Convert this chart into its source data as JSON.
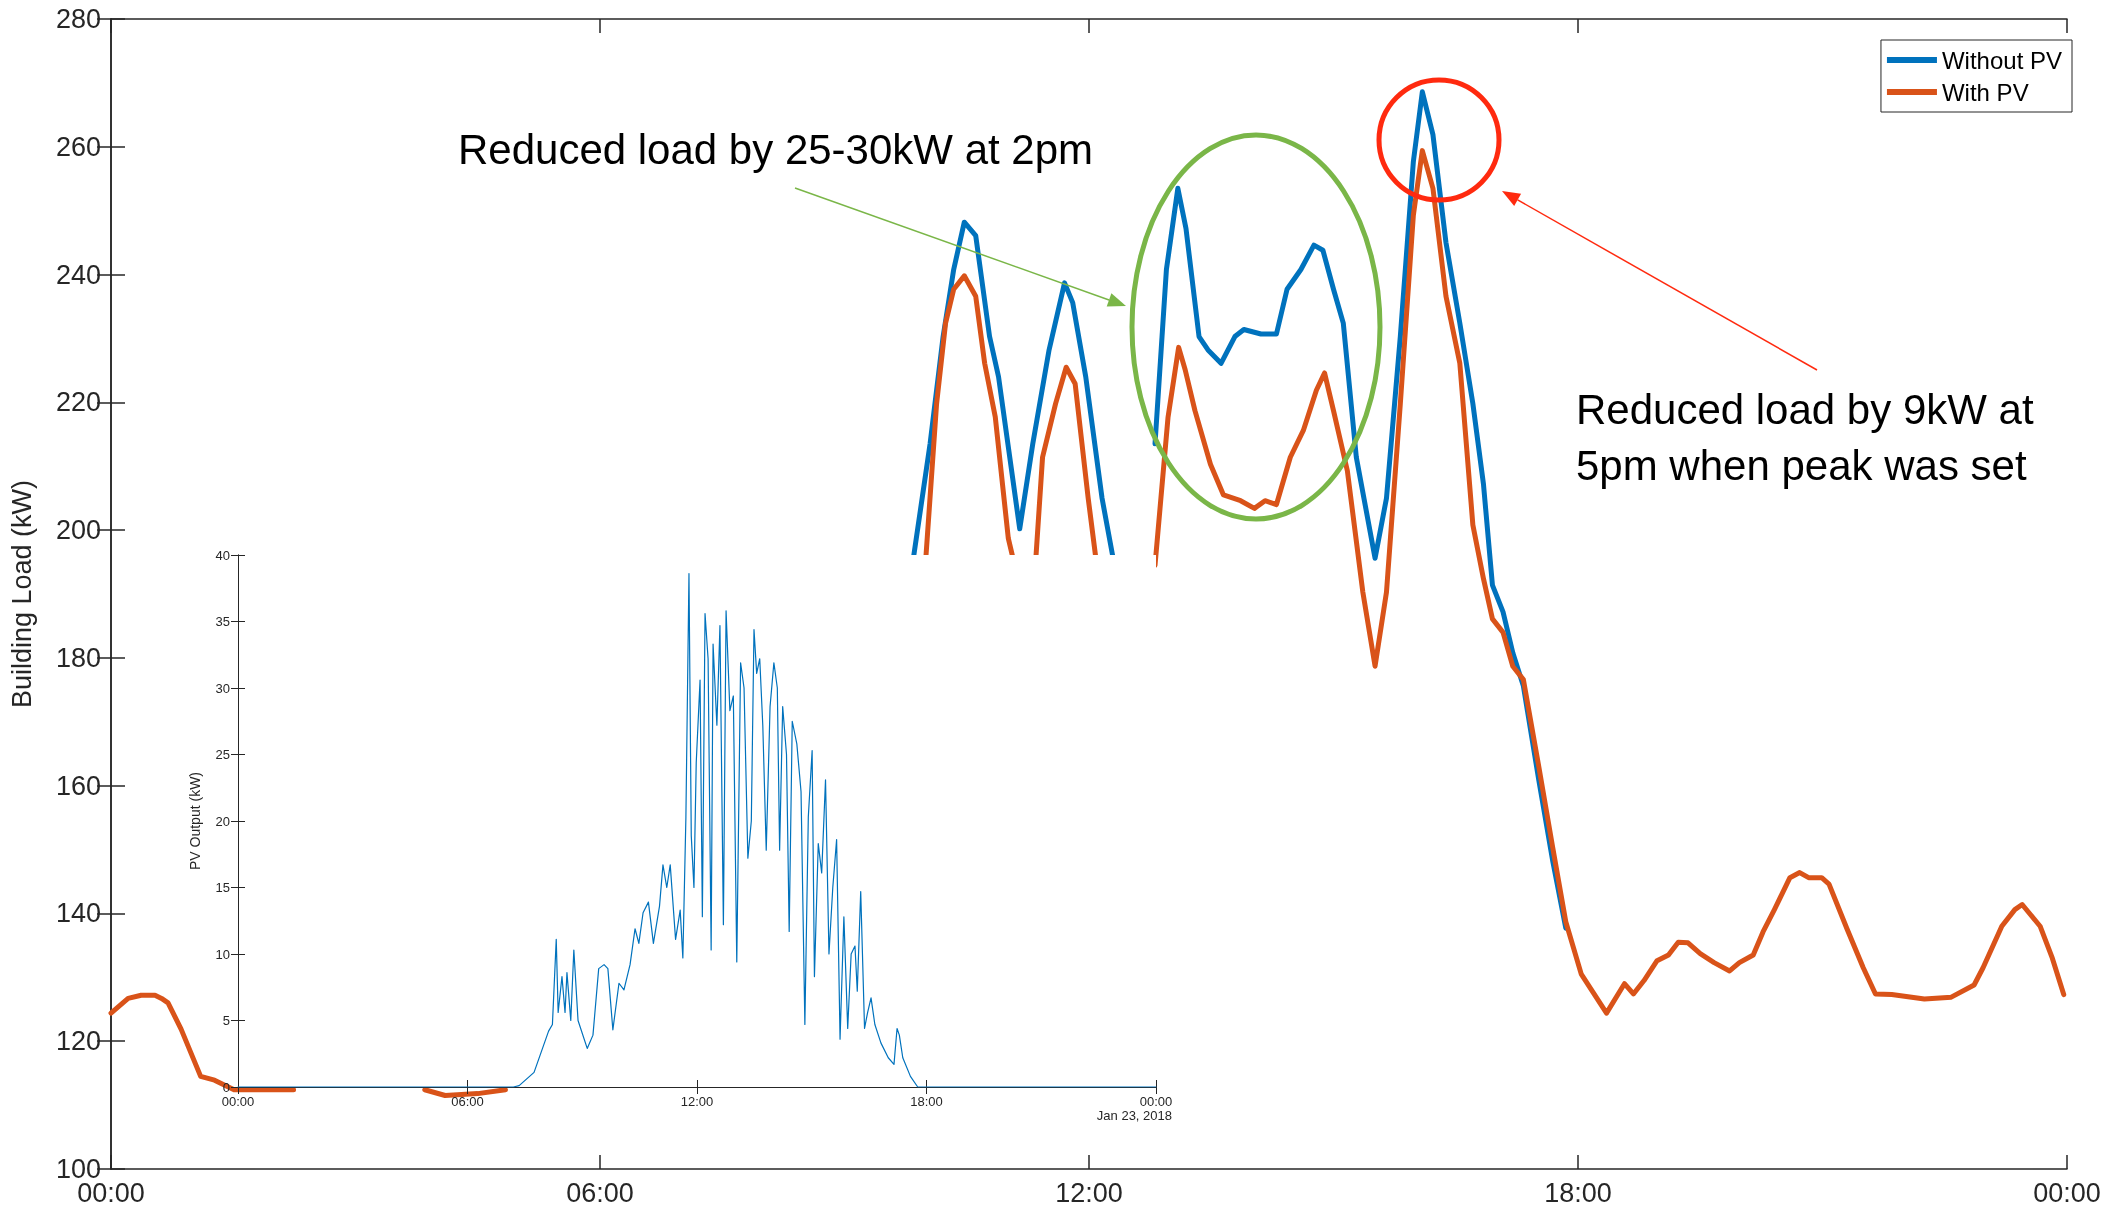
{
  "chart_data": [
    {
      "type": "line",
      "ylabel": "Building Load (kW)",
      "xlim": [
        0,
        24
      ],
      "xticks": [
        {
          "value": 0,
          "label": "00:00"
        },
        {
          "value": 6,
          "label": "06:00"
        },
        {
          "value": 12,
          "label": "12:00"
        },
        {
          "value": 18,
          "label": "18:00"
        },
        {
          "value": 24,
          "label": "00:00"
        }
      ],
      "ylim": [
        100,
        280
      ],
      "yticks": [
        100,
        120,
        140,
        160,
        180,
        200,
        220,
        240,
        260,
        280
      ],
      "grid": false,
      "legend": "top right",
      "marker": "none",
      "annotations": [
        "Reduced load by 25-30kW at 2pm",
        "Reduced load by 9kW at 5pm when peak was set"
      ],
      "series": [
        {
          "name": "Without PV",
          "color": "#0072bd",
          "x": [
            9.85,
            10.05,
            10.21,
            10.34,
            10.47,
            10.61,
            10.78,
            10.89,
            11.15,
            11.31,
            11.51,
            11.7,
            11.8,
            11.96,
            12.16,
            12.29,
            12.3,
            12.81,
            12.95,
            13.09,
            13.19,
            13.35,
            13.46,
            13.62,
            13.79,
            13.9,
            14.11,
            14.3,
            14.43,
            14.6,
            14.76,
            14.87,
            15.0,
            15.12,
            15.28,
            15.51,
            15.65,
            15.82,
            15.98,
            16.09,
            16.22,
            16.38,
            16.55,
            16.71,
            16.84,
            16.95,
            17.08,
            17.2,
            17.33,
            17.52,
            17.69,
            17.85
          ],
          "values": [
            196,
            213.5,
            230.3,
            240.8,
            248.2,
            246.1,
            230.3,
            224,
            200.2,
            213.5,
            228.2,
            238.7,
            235.6,
            224,
            205,
            196,
            null,
            213.5,
            240.8,
            253.5,
            247.2,
            230.3,
            228.2,
            226.1,
            230.3,
            231.4,
            230.7,
            230.7,
            237.7,
            240.8,
            244.6,
            243.8,
            237.7,
            232.4,
            211.4,
            195.6,
            205,
            230.3,
            257.7,
            268.6,
            261.9,
            245,
            232.4,
            219.8,
            207.2,
            191.4,
            187.2,
            180.8,
            175.6,
            160.8,
            148.2,
            137.7
          ]
        },
        {
          "name": "With PV",
          "color": "#d95319",
          "x": [
            0,
            0.21,
            0.37,
            0.54,
            0.62,
            0.7,
            0.86,
            1.1,
            1.27,
            1.51,
            2.24,
            2.3,
            3.85,
            4.1,
            4.5,
            4.84,
            4.9,
            10.0,
            10.13,
            10.24,
            10.34,
            10.47,
            10.61,
            10.72,
            10.85,
            11.01,
            11.06,
            11.1,
            11.35,
            11.43,
            11.59,
            11.72,
            11.83,
            11.99,
            12.08,
            12.1,
            12.81,
            12.97,
            13.1,
            13.18,
            13.3,
            13.49,
            13.65,
            13.86,
            14.03,
            14.16,
            14.3,
            14.47,
            14.63,
            14.79,
            14.89,
            15.0,
            15.17,
            15.36,
            15.51,
            15.65,
            15.82,
            15.98,
            16.09,
            16.22,
            16.38,
            16.55,
            16.71,
            16.84,
            16.95,
            17.08,
            17.2,
            17.33,
            17.52,
            17.69,
            17.85,
            18.04,
            18.35,
            18.57,
            18.68,
            18.81,
            18.97,
            19.11,
            19.23,
            19.35,
            19.5,
            19.67,
            19.86,
            19.98,
            20.15,
            20.27,
            20.41,
            20.6,
            20.72,
            20.83,
            20.99,
            21.08,
            21.3,
            21.5,
            21.65,
            21.85,
            22.25,
            22.58,
            22.86,
            22.97,
            23.2,
            23.36,
            23.45,
            23.67,
            23.82,
            23.96
          ],
          "values": [
            124.4,
            126.7,
            127.2,
            127.2,
            126.7,
            126,
            121.9,
            114.5,
            113.9,
            112.4,
            112.4,
            null,
            112.4,
            111.5,
            111.8,
            112.4,
            null,
            196,
            219.8,
            232.4,
            237.7,
            239.8,
            236.6,
            226.1,
            217.7,
            198.7,
            196,
            null,
            196,
            211.4,
            219.8,
            225.5,
            222.9,
            205,
            196,
            null,
            194.5,
            217.7,
            228.6,
            225.1,
            218.7,
            210.3,
            205.5,
            204.6,
            203.4,
            204.6,
            204,
            211.4,
            215.6,
            221.9,
            224.6,
            218.7,
            209.3,
            190.3,
            178.7,
            190.3,
            219.8,
            249.3,
            259.4,
            253.5,
            236.6,
            226.1,
            200.8,
            192.4,
            186.1,
            184,
            178.7,
            176.6,
            162.9,
            150.3,
            138.7,
            130.5,
            124.4,
            129,
            127.4,
            129.5,
            132.6,
            133.5,
            135.5,
            135.4,
            133.7,
            132.3,
            131,
            132.3,
            133.5,
            137.1,
            140.6,
            145.6,
            146.4,
            145.6,
            145.6,
            144.6,
            137.6,
            131.5,
            127.4,
            127.3,
            126.6,
            126.9,
            128.8,
            131.5,
            138,
            140.6,
            141.4,
            138,
            133,
            127.3
          ]
        }
      ]
    },
    {
      "type": "line",
      "ylabel": "PV Output (kW)",
      "xlim": [
        0,
        24
      ],
      "xticks": [
        {
          "value": 0,
          "label": "00:00"
        },
        {
          "value": 6,
          "label": "06:00"
        },
        {
          "value": 12,
          "label": "12:00"
        },
        {
          "value": 18,
          "label": "18:00"
        },
        {
          "value": 24,
          "label": "00:00"
        }
      ],
      "ylim": [
        0,
        40
      ],
      "yticks": [
        0,
        5,
        10,
        15,
        20,
        25,
        30,
        35,
        40
      ],
      "grid": false,
      "marker": "none",
      "annotations": [
        "Jan 23, 2018"
      ],
      "series": [
        {
          "color": "#0072bd",
          "x": [
            0,
            7.2,
            7.35,
            7.74,
            8.12,
            8.22,
            8.32,
            8.37,
            8.47,
            8.55,
            8.6,
            8.7,
            8.78,
            8.89,
            9.13,
            9.28,
            9.43,
            9.57,
            9.67,
            9.8,
            9.96,
            10.09,
            10.25,
            10.38,
            10.48,
            10.59,
            10.73,
            10.86,
            11.02,
            11.11,
            11.21,
            11.3,
            11.44,
            11.56,
            11.63,
            11.71,
            11.79,
            11.85,
            11.92,
            11.98,
            12.08,
            12.14,
            12.21,
            12.29,
            12.37,
            12.42,
            12.52,
            12.6,
            12.69,
            12.76,
            12.86,
            12.95,
            13.04,
            13.14,
            13.23,
            13.33,
            13.42,
            13.49,
            13.56,
            13.64,
            13.72,
            13.81,
            13.91,
            14.01,
            14.1,
            14.16,
            14.24,
            14.34,
            14.41,
            14.49,
            14.61,
            14.72,
            14.82,
            14.91,
            15.01,
            15.07,
            15.17,
            15.26,
            15.36,
            15.45,
            15.55,
            15.65,
            15.74,
            15.84,
            15.94,
            16.03,
            16.13,
            16.19,
            16.28,
            16.38,
            16.46,
            16.55,
            16.65,
            16.81,
            17.0,
            17.15,
            17.23,
            17.29,
            17.38,
            17.58,
            17.77,
            24
          ],
          "values": [
            0,
            0,
            0.1,
            1.1,
            4.2,
            4.7,
            11.1,
            5.6,
            8.3,
            5.6,
            8.6,
            5,
            10.3,
            5,
            2.9,
            3.9,
            8.9,
            9.2,
            8.9,
            4.3,
            7.8,
            7.3,
            9.2,
            11.9,
            10.8,
            13.1,
            13.9,
            10.8,
            13.6,
            16.7,
            15,
            16.7,
            11.1,
            13.3,
            9.7,
            20.3,
            38.6,
            18.9,
            15,
            24.4,
            30.6,
            12.8,
            35.6,
            32.2,
            10.3,
            33.3,
            27.2,
            34.7,
            12.2,
            35.8,
            28.3,
            29.4,
            9.4,
            31.9,
            30,
            17.2,
            20,
            34.4,
            31.1,
            32.2,
            27.2,
            17.8,
            28.6,
            31.9,
            30,
            17.8,
            28.6,
            25,
            11.7,
            27.5,
            25.8,
            22.2,
            4.7,
            20.3,
            25.3,
            8.3,
            18.3,
            16.1,
            23.1,
            10,
            15,
            18.6,
            3.6,
            12.8,
            4.4,
            10,
            10.6,
            7.2,
            14.7,
            4.4,
            5.6,
            6.7,
            4.7,
            3.3,
            2.2,
            1.7,
            4.4,
            3.9,
            2.2,
            0.8,
            0,
            0
          ]
        }
      ]
    }
  ]
}
